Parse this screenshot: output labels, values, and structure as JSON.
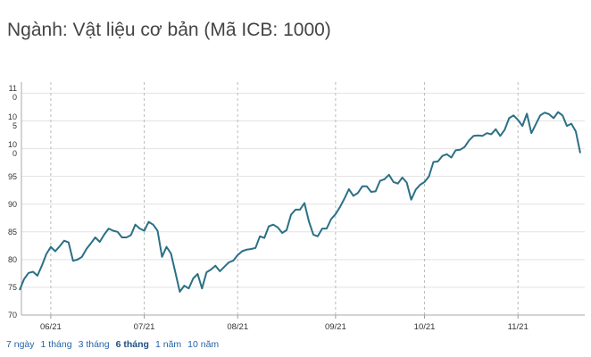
{
  "chart_data": {
    "type": "line",
    "title": "Ngành: Vật liệu cơ bản (Mã ICB: 1000)",
    "series": [
      {
        "name": "Vật liệu cơ bản",
        "color": "#2b7085",
        "values": [
          74.5,
          76.5,
          77.6,
          77.8,
          77.1,
          78.9,
          81,
          82.3,
          81.5,
          82.4,
          83.4,
          83.1,
          79.8,
          80,
          80.5,
          81.9,
          82.9,
          84,
          83.2,
          84.5,
          85.6,
          85.2,
          85,
          84,
          84,
          84.4,
          86.3,
          85.6,
          85.2,
          86.8,
          86.3,
          85.2,
          80.5,
          82.3,
          81.1,
          77.7,
          74.2,
          75.3,
          74.8,
          76.6,
          77.4,
          74.8,
          77.7,
          78.2,
          78.9,
          77.9,
          78.7,
          79.5,
          79.8,
          80.8,
          81.5,
          81.8,
          81.9,
          82.1,
          84.2,
          83.9,
          86,
          86.3,
          85.8,
          84.8,
          85.3,
          88.1,
          89,
          89,
          90.2,
          86.9,
          84.5,
          84.2,
          85.6,
          85.6,
          87.3,
          88.2,
          89.5,
          91,
          92.7,
          91.5,
          92,
          93.2,
          93.2,
          92.2,
          92.3,
          94.2,
          94.5,
          95.3,
          94,
          93.7,
          94.8,
          93.9,
          90.8,
          92.6,
          93.5,
          94,
          95,
          97.6,
          97.7,
          98.7,
          99,
          98.4,
          99.7,
          99.8,
          100.3,
          101.5,
          102.3,
          102.4,
          102.3,
          102.8,
          102.6,
          103.5,
          102.3,
          103.4,
          105.5,
          106,
          105.2,
          104.1,
          106.3,
          102.8,
          104.4,
          106,
          106.5,
          106.2,
          105.5,
          106.6,
          106,
          104.1,
          104.5,
          103.1,
          99.2
        ]
      }
    ],
    "xlim": [
      0,
      126
    ],
    "xticks": [
      {
        "value": 7,
        "label": "06/21"
      },
      {
        "value": 28,
        "label": "07/21"
      },
      {
        "value": 49,
        "label": "08/21"
      },
      {
        "value": 71,
        "label": "09/21"
      },
      {
        "value": 91,
        "label": "10/21"
      },
      {
        "value": 112,
        "label": "11/21"
      }
    ],
    "ylim": [
      70,
      112
    ],
    "yticks": [
      70,
      75,
      80,
      85,
      90,
      95,
      100,
      105,
      110
    ],
    "grid": true,
    "ranges": [
      "7 ngày",
      "1 tháng",
      "3 tháng",
      "6 tháng",
      "1 năm",
      "10 năm"
    ],
    "active_range": 3
  }
}
